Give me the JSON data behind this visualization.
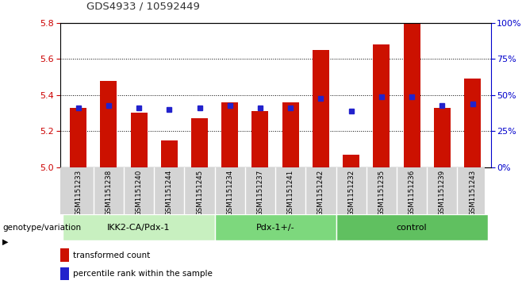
{
  "title": "GDS4933 / 10592449",
  "samples": [
    "GSM1151233",
    "GSM1151238",
    "GSM1151240",
    "GSM1151244",
    "GSM1151245",
    "GSM1151234",
    "GSM1151237",
    "GSM1151241",
    "GSM1151242",
    "GSM1151232",
    "GSM1151235",
    "GSM1151236",
    "GSM1151239",
    "GSM1151243"
  ],
  "red_values": [
    5.33,
    5.48,
    5.3,
    5.15,
    5.27,
    5.36,
    5.31,
    5.36,
    5.65,
    5.07,
    5.68,
    5.8,
    5.33,
    5.49
  ],
  "blue_values": [
    5.33,
    5.34,
    5.33,
    5.32,
    5.33,
    5.34,
    5.33,
    5.33,
    5.38,
    5.31,
    5.39,
    5.39,
    5.34,
    5.35
  ],
  "groups": [
    {
      "label": "IKK2-CA/Pdx-1",
      "start": 0,
      "end": 5
    },
    {
      "label": "Pdx-1+/-",
      "start": 5,
      "end": 9
    },
    {
      "label": "control",
      "start": 9,
      "end": 14
    }
  ],
  "group_colors": [
    "#c8f0c0",
    "#7dd87d",
    "#60c060"
  ],
  "ylim_left": [
    5.0,
    5.8
  ],
  "ylim_right": [
    0,
    100
  ],
  "yticks_left": [
    5.0,
    5.2,
    5.4,
    5.6,
    5.8
  ],
  "yticks_right": [
    0,
    25,
    50,
    75,
    100
  ],
  "bar_color": "#cc1100",
  "marker_color": "#2222cc",
  "baseline": 5.0,
  "bar_width": 0.55,
  "legend_labels": [
    "transformed count",
    "percentile rank within the sample"
  ],
  "legend_colors": [
    "#cc1100",
    "#2222cc"
  ],
  "label_left": "genotype/variation",
  "ylabel_right_color": "#0000cc",
  "ylabel_left_color": "#cc0000",
  "grid_color": "#000000"
}
